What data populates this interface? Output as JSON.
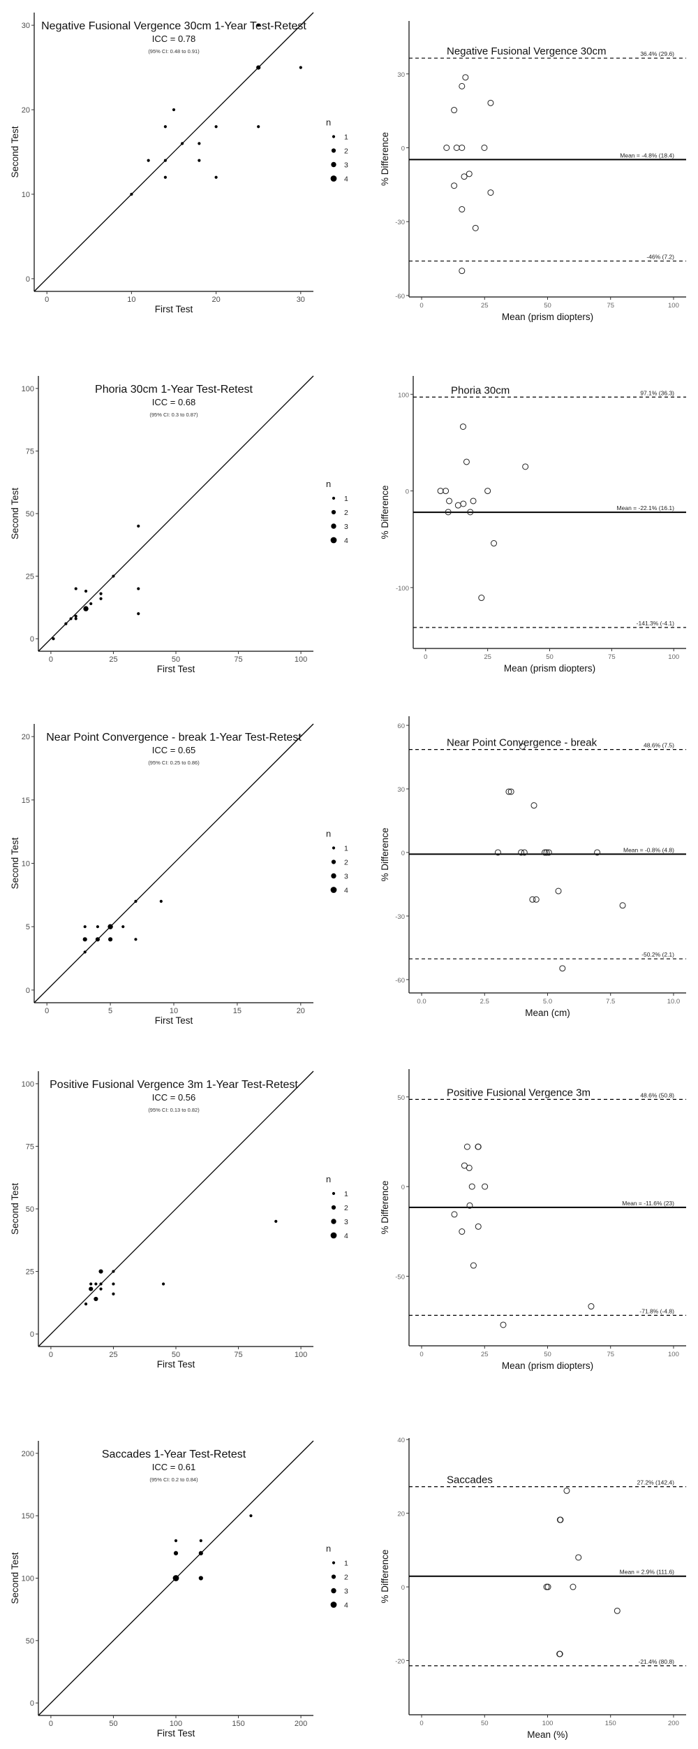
{
  "colors": {
    "ink": "#000000",
    "axis": "#333333",
    "background": "#ffffff"
  },
  "chart_data": [
    {
      "type": "scatter",
      "kind": "test-retest",
      "title": "Negative Fusional Vergence 30cm 1-Year Test-Retest",
      "icc": "ICC = 0.78",
      "ci": "(95% CI: 0.48 to 0.91)",
      "xlabel": "First Test",
      "ylabel": "Second Test",
      "xlim": [
        -1.5,
        31.5
      ],
      "ylim": [
        -1.5,
        31.5
      ],
      "xticks": [
        0,
        10,
        20,
        30
      ],
      "xtick_labels": [
        "0",
        "10",
        "20",
        "30"
      ],
      "yticks": [
        0,
        10,
        20,
        30
      ],
      "ytick_labels": [
        "0",
        "10",
        "20",
        "30"
      ],
      "identity_line": true,
      "legend": {
        "title": "n",
        "labels": [
          "1",
          "2",
          "3",
          "4"
        ],
        "placement": "right"
      },
      "points": [
        [
          10,
          10,
          1
        ],
        [
          12,
          14,
          1
        ],
        [
          14,
          18,
          1
        ],
        [
          14,
          14,
          1
        ],
        [
          14,
          12,
          1
        ],
        [
          15,
          20,
          1
        ],
        [
          16,
          16,
          1
        ],
        [
          18,
          16,
          1
        ],
        [
          18,
          14,
          1
        ],
        [
          20,
          18,
          1
        ],
        [
          20,
          12,
          1
        ],
        [
          25,
          25,
          2
        ],
        [
          25,
          18,
          1
        ],
        [
          30,
          25,
          1
        ],
        [
          25,
          30,
          1
        ]
      ]
    },
    {
      "type": "scatter",
      "kind": "bland-altman",
      "title": "Negative Fusional Vergence 30cm",
      "xlabel": "Mean (prism diopters)",
      "ylabel": "% Difference",
      "xlim": [
        -5,
        105
      ],
      "ylim": [
        -60.6,
        51.5
      ],
      "xticks": [
        0,
        25,
        50,
        75,
        100
      ],
      "xtick_labels": [
        "0",
        "25",
        "50",
        "75",
        "100"
      ],
      "yticks": [
        -60,
        -30,
        0,
        30
      ],
      "ytick_labels": [
        "-60",
        "-30",
        "0",
        "30"
      ],
      "upper": 36.4,
      "upper_label": "36.4% (29.6)",
      "mean": -4.8,
      "mean_label": "Mean = -4.8% (18.4)",
      "lower": -46,
      "lower_label": "-46% (7.2)",
      "points": [
        [
          17.4,
          28.6
        ],
        [
          16,
          25
        ],
        [
          27.4,
          18.2
        ],
        [
          12.9,
          15.3
        ],
        [
          9.9,
          0
        ],
        [
          13.9,
          0
        ],
        [
          16,
          0
        ],
        [
          24.9,
          0
        ],
        [
          18.9,
          -10.6
        ],
        [
          16.9,
          -11.7
        ],
        [
          12.9,
          -15.4
        ],
        [
          27.4,
          -18.2
        ],
        [
          16,
          -25
        ],
        [
          21.4,
          -32.6
        ],
        [
          16,
          -50
        ]
      ]
    },
    {
      "type": "scatter",
      "kind": "test-retest",
      "title": "Phoria 30cm 1-Year Test-Retest",
      "icc": "ICC = 0.68",
      "ci": "(95% CI: 0.3 to 0.87)",
      "xlabel": "First Test",
      "ylabel": "Second Test",
      "xlim": [
        -5,
        105
      ],
      "ylim": [
        -5,
        105
      ],
      "xticks": [
        0,
        25,
        50,
        75,
        100
      ],
      "xtick_labels": [
        "0",
        "25",
        "50",
        "75",
        "100"
      ],
      "yticks": [
        0,
        25,
        50,
        75,
        100
      ],
      "ytick_labels": [
        "0",
        "25",
        "50",
        "75",
        "100"
      ],
      "identity_line": true,
      "legend": {
        "title": "n",
        "labels": [
          "1",
          "2",
          "3",
          "4"
        ],
        "placement": "right"
      },
      "points": [
        [
          1,
          0,
          1
        ],
        [
          6,
          6,
          1
        ],
        [
          8,
          8,
          1
        ],
        [
          10,
          9,
          1
        ],
        [
          10,
          8,
          1
        ],
        [
          10,
          20,
          1
        ],
        [
          14,
          19,
          1
        ],
        [
          14,
          12,
          3
        ],
        [
          16,
          14,
          1
        ],
        [
          20,
          18,
          1
        ],
        [
          20,
          16,
          1
        ],
        [
          25,
          25,
          1
        ],
        [
          35,
          45,
          1
        ],
        [
          35,
          20,
          1
        ],
        [
          35,
          10,
          1
        ]
      ]
    },
    {
      "type": "scatter",
      "kind": "bland-altman",
      "title": "Phoria 30cm",
      "xlabel": "Mean (prism diopters)",
      "ylabel": "% Difference",
      "xlim": [
        -5,
        105
      ],
      "ylim": [
        -163,
        119
      ],
      "xticks": [
        0,
        25,
        50,
        75,
        100
      ],
      "xtick_labels": [
        "0",
        "25",
        "50",
        "75",
        "100"
      ],
      "yticks": [
        -100,
        0,
        100
      ],
      "ytick_labels": [
        "-100",
        "0",
        "100"
      ],
      "upper": 97.1,
      "upper_label": "97.1% (36.3)",
      "mean": -22.1,
      "mean_label": "Mean = -22.1% (16.1)",
      "lower": -141.3,
      "lower_label": "-141.3% (-4.1)",
      "points": [
        [
          15.1,
          66.5
        ],
        [
          16.5,
          30.1
        ],
        [
          40.2,
          25.1
        ],
        [
          6,
          0
        ],
        [
          8.1,
          0
        ],
        [
          25,
          0
        ],
        [
          9.5,
          -10.4
        ],
        [
          19.2,
          -10.4
        ],
        [
          13.1,
          -14.9
        ],
        [
          15.2,
          -13.3
        ],
        [
          9.1,
          -21.9
        ],
        [
          18,
          -21.9
        ],
        [
          27.5,
          -54.2
        ],
        [
          22.5,
          -110.6
        ]
      ]
    },
    {
      "type": "scatter",
      "kind": "test-retest",
      "title": "Near Point Convergence - break 1-Year Test-Retest",
      "icc": "ICC = 0.65",
      "ci": "(95% CI: 0.25 to 0.86)",
      "xlabel": "First Test",
      "ylabel": "Second Test",
      "xlim": [
        -1,
        21
      ],
      "ylim": [
        -1,
        21
      ],
      "xticks": [
        0,
        5,
        10,
        15,
        20
      ],
      "xtick_labels": [
        "0",
        "5",
        "10",
        "15",
        "20"
      ],
      "yticks": [
        0,
        5,
        10,
        15,
        20
      ],
      "ytick_labels": [
        "0",
        "5",
        "10",
        "15",
        "20"
      ],
      "identity_line": true,
      "legend": {
        "title": "n",
        "labels": [
          "1",
          "2",
          "3",
          "4"
        ],
        "placement": "right"
      },
      "points": [
        [
          3,
          5,
          1
        ],
        [
          4,
          5,
          1
        ],
        [
          5,
          5,
          3
        ],
        [
          6,
          5,
          1
        ],
        [
          3,
          4,
          2
        ],
        [
          4,
          4,
          2
        ],
        [
          5,
          4,
          2
        ],
        [
          7,
          4,
          1
        ],
        [
          3,
          3,
          1
        ],
        [
          7,
          7,
          1
        ],
        [
          9,
          7,
          1
        ]
      ]
    },
    {
      "type": "scatter",
      "kind": "bland-altman",
      "title": "Near Point Convergence - break",
      "xlabel": "Mean (cm)",
      "ylabel": "% Difference",
      "xlim": [
        -0.5,
        10.5
      ],
      "ylim": [
        -66.3,
        64.3
      ],
      "xticks": [
        0,
        2.5,
        5,
        7.5,
        10
      ],
      "xtick_labels": [
        "0.0",
        "2.5",
        "5.0",
        "7.5",
        "10.0"
      ],
      "yticks": [
        -60,
        -30,
        0,
        30,
        60
      ],
      "ytick_labels": [
        "-60",
        "-30",
        "0",
        "30",
        "60"
      ],
      "upper": 48.6,
      "upper_label": "48.6% (7.5)",
      "mean": -0.8,
      "mean_label": "Mean = -0.8% (4.8)",
      "lower": -50.2,
      "lower_label": "-50.2% (2.1)",
      "points": [
        [
          4,
          50
        ],
        [
          3.46,
          28.7
        ],
        [
          3.55,
          28.7
        ],
        [
          4.46,
          22.2
        ],
        [
          3.03,
          0
        ],
        [
          3.95,
          0
        ],
        [
          4.08,
          0
        ],
        [
          4.89,
          0
        ],
        [
          4.96,
          0
        ],
        [
          5.05,
          0
        ],
        [
          6.97,
          0
        ],
        [
          4.4,
          -22.2
        ],
        [
          4.55,
          -22.2
        ],
        [
          5.43,
          -18.2
        ],
        [
          7.98,
          -25
        ],
        [
          5.59,
          -54.7
        ]
      ]
    },
    {
      "type": "scatter",
      "kind": "test-retest",
      "title": "Positive Fusional Vergence 3m 1-Year Test-Retest",
      "icc": "ICC = 0.56",
      "ci": "(95% CI: 0.13 to 0.82)",
      "xlabel": "First Test",
      "ylabel": "Second Test",
      "xlim": [
        -5,
        105
      ],
      "ylim": [
        -5,
        105
      ],
      "xticks": [
        0,
        25,
        50,
        75,
        100
      ],
      "xtick_labels": [
        "0",
        "25",
        "50",
        "75",
        "100"
      ],
      "yticks": [
        0,
        25,
        50,
        75,
        100
      ],
      "ytick_labels": [
        "0",
        "25",
        "50",
        "75",
        "100"
      ],
      "identity_line": true,
      "legend": {
        "title": "n",
        "labels": [
          "1",
          "2",
          "3",
          "4"
        ],
        "placement": "right"
      },
      "points": [
        [
          14,
          12,
          1
        ],
        [
          16,
          20,
          1
        ],
        [
          18,
          20,
          1
        ],
        [
          16,
          18,
          2
        ],
        [
          20,
          25,
          2
        ],
        [
          20,
          20,
          1
        ],
        [
          20,
          18,
          1
        ],
        [
          18,
          14,
          2
        ],
        [
          25,
          25,
          1
        ],
        [
          25,
          20,
          1
        ],
        [
          25,
          16,
          1
        ],
        [
          45,
          20,
          1
        ],
        [
          90,
          45,
          1
        ]
      ]
    },
    {
      "type": "scatter",
      "kind": "bland-altman",
      "title": "Positive Fusional Vergence 3m",
      "xlabel": "Mean (prism diopters)",
      "ylabel": "% Difference",
      "xlim": [
        -5,
        105
      ],
      "ylim": [
        -88.8,
        65.5
      ],
      "xticks": [
        0,
        25,
        50,
        75,
        100
      ],
      "xtick_labels": [
        "0",
        "25",
        "50",
        "75",
        "100"
      ],
      "yticks": [
        -50,
        0,
        50
      ],
      "ytick_labels": [
        "-50",
        "0",
        "50"
      ],
      "upper": 48.6,
      "upper_label": "48.6% (50.8)",
      "mean": -11.6,
      "mean_label": "Mean = -11.6% (23)",
      "lower": -71.8,
      "lower_label": "-71.8% (-4.8)",
      "points": [
        [
          18.1,
          22.2
        ],
        [
          22.4,
          22.2
        ],
        [
          22.5,
          22.2
        ],
        [
          17,
          11.7
        ],
        [
          18.9,
          10.4
        ],
        [
          20,
          0
        ],
        [
          25.1,
          0
        ],
        [
          19.1,
          -10.6
        ],
        [
          13,
          -15.5
        ],
        [
          22.5,
          -22.3
        ],
        [
          16,
          -25.1
        ],
        [
          20.6,
          -44
        ],
        [
          67.3,
          -66.8
        ],
        [
          32.4,
          -77.1
        ]
      ]
    },
    {
      "type": "scatter",
      "kind": "test-retest",
      "title": "Saccades 1-Year Test-Retest",
      "icc": "ICC = 0.61",
      "ci": "(95% CI: 0.2 to 0.84)",
      "xlabel": "First Test",
      "ylabel": "Second Test",
      "xlim": [
        -10,
        210
      ],
      "ylim": [
        -10,
        210
      ],
      "xticks": [
        0,
        50,
        100,
        150,
        200
      ],
      "xtick_labels": [
        "0",
        "50",
        "100",
        "150",
        "200"
      ],
      "yticks": [
        0,
        50,
        100,
        150,
        200
      ],
      "ytick_labels": [
        "0",
        "50",
        "100",
        "150",
        "200"
      ],
      "identity_line": true,
      "legend": {
        "title": "n",
        "labels": [
          "1",
          "2",
          "3",
          "4"
        ],
        "placement": "right"
      },
      "points": [
        [
          100,
          130,
          1
        ],
        [
          120,
          130,
          1
        ],
        [
          100,
          120,
          2
        ],
        [
          120,
          120,
          2
        ],
        [
          100,
          100,
          4
        ],
        [
          120,
          100,
          2
        ],
        [
          160,
          150,
          1
        ]
      ]
    },
    {
      "type": "scatter",
      "kind": "bland-altman",
      "title": "Saccades",
      "xlabel": "Mean (%)",
      "ylabel": "% Difference",
      "xlim": [
        -10,
        210
      ],
      "ylim": [
        -34.7,
        40.4
      ],
      "xticks": [
        0,
        50,
        100,
        150,
        200
      ],
      "xtick_labels": [
        "0",
        "50",
        "100",
        "150",
        "200"
      ],
      "yticks": [
        -20,
        0,
        20,
        40
      ],
      "ytick_labels": [
        "-20",
        "0",
        "20",
        "40"
      ],
      "upper": 27.2,
      "upper_label": "27.2% (142.4)",
      "mean": 2.9,
      "mean_label": "Mean = 2.9% (111.6)",
      "lower": -21.4,
      "lower_label": "-21.4% (80.8)",
      "points": [
        [
          115.2,
          26.1
        ],
        [
          109.9,
          18.2
        ],
        [
          110.2,
          18.2
        ],
        [
          124.5,
          8
        ],
        [
          99.2,
          0
        ],
        [
          100.3,
          0
        ],
        [
          120.2,
          0
        ],
        [
          155.3,
          -6.5
        ],
        [
          109.5,
          -18.2
        ],
        [
          109.8,
          -18.2
        ]
      ]
    }
  ]
}
